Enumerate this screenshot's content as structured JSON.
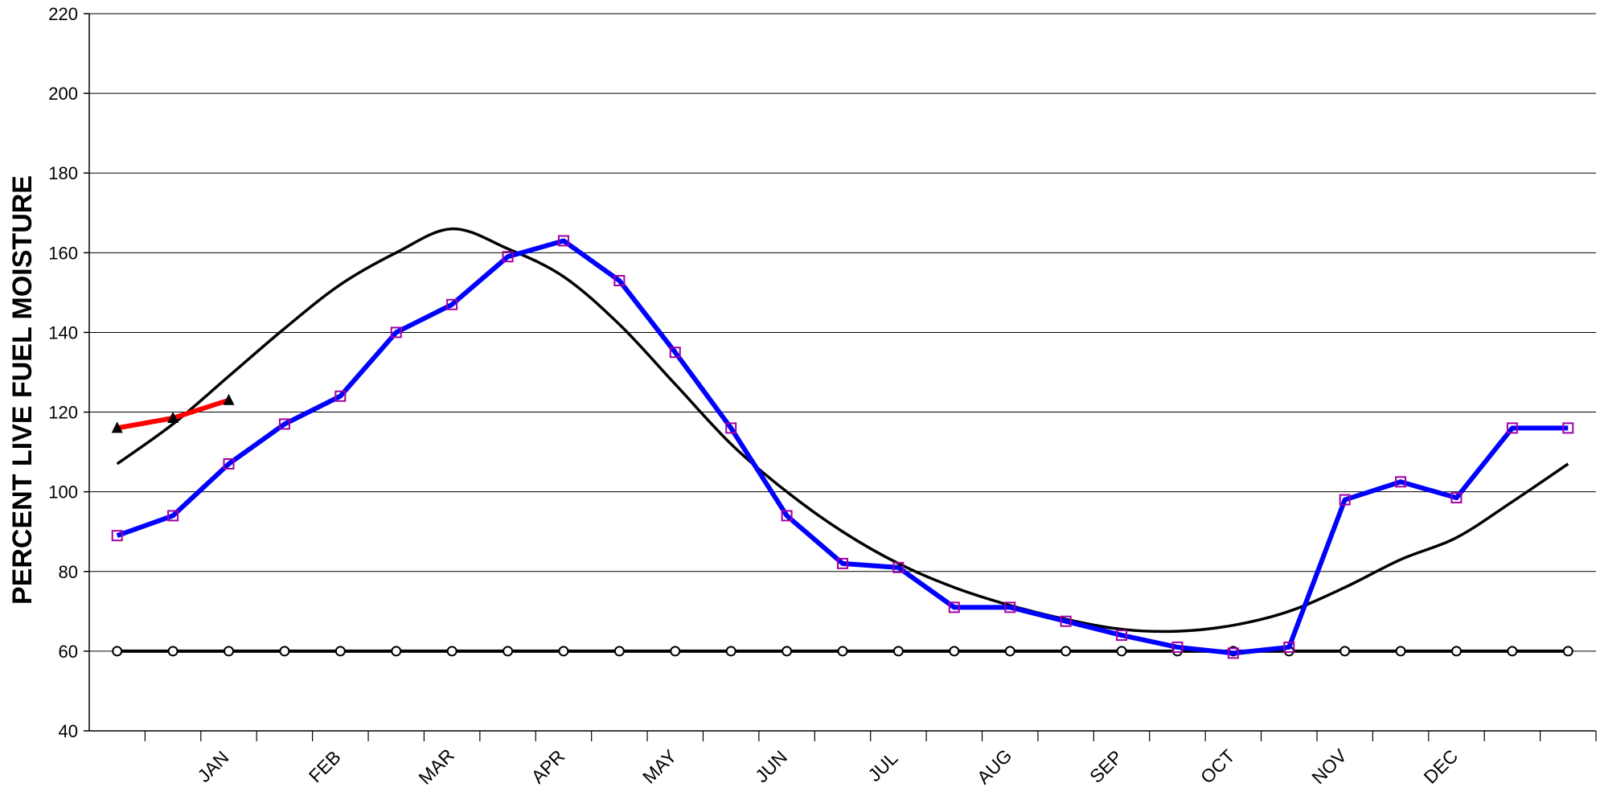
{
  "chart_data": {
    "type": "line",
    "title": "",
    "ylabel": "PERCENT LIVE FUEL MOISTURE",
    "xlabel": "",
    "ylim": [
      40,
      220
    ],
    "yticks": [
      40,
      60,
      80,
      100,
      120,
      140,
      160,
      180,
      200,
      220
    ],
    "months": [
      "JAN",
      "FEB",
      "MAR",
      "APR",
      "MAY",
      "JUN",
      "JUL",
      "AUG",
      "SEP",
      "OCT",
      "NOV",
      "DEC"
    ],
    "grid": true,
    "x_index_range": [
      0.5,
      27.5
    ],
    "series": [
      {
        "key": "blue",
        "color": "#0000ff",
        "marker": "square",
        "marker_color": "#a000a0",
        "x": [
          1,
          2,
          3,
          4,
          5,
          6,
          7,
          8,
          9,
          10,
          11,
          12,
          13,
          14,
          15,
          16,
          17,
          18,
          19,
          20,
          21,
          22,
          23,
          24,
          25,
          26,
          27
        ],
        "values": [
          89,
          94,
          107,
          117,
          124,
          140,
          147,
          159,
          163,
          153,
          135,
          116,
          94,
          82,
          81,
          71,
          71,
          67.5,
          64,
          61,
          59.5,
          61,
          98,
          102.5,
          98.5,
          116,
          116
        ]
      },
      {
        "key": "red",
        "color": "#ff0000",
        "marker": "triangle",
        "marker_color": "#000000",
        "x": [
          1,
          2,
          3
        ],
        "values": [
          116,
          118.5,
          123
        ]
      },
      {
        "key": "black-smooth",
        "color": "#000000",
        "marker": "none",
        "x": [
          1,
          2,
          3,
          4,
          5,
          6,
          7,
          8,
          9,
          10,
          11,
          12,
          13,
          14,
          15,
          16,
          17,
          18,
          19,
          20,
          21,
          22,
          23,
          24,
          25,
          26,
          27
        ],
        "values": [
          107,
          117,
          129,
          141,
          152,
          160,
          166,
          161,
          154,
          142,
          127,
          112,
          100,
          90,
          82,
          76,
          71.5,
          68,
          65.5,
          65,
          66.5,
          70,
          76,
          83,
          88.5,
          97.5,
          107
        ]
      },
      {
        "key": "threshold-60",
        "color": "#000000",
        "marker": "circle",
        "marker_color": "#000000",
        "x": [
          1,
          2,
          3,
          4,
          5,
          6,
          7,
          8,
          9,
          10,
          11,
          12,
          13,
          14,
          15,
          16,
          17,
          18,
          19,
          20,
          21,
          22,
          23,
          24,
          25,
          26,
          27
        ],
        "values": [
          60,
          60,
          60,
          60,
          60,
          60,
          60,
          60,
          60,
          60,
          60,
          60,
          60,
          60,
          60,
          60,
          60,
          60,
          60,
          60,
          60,
          60,
          60,
          60,
          60,
          60,
          60
        ]
      }
    ]
  }
}
